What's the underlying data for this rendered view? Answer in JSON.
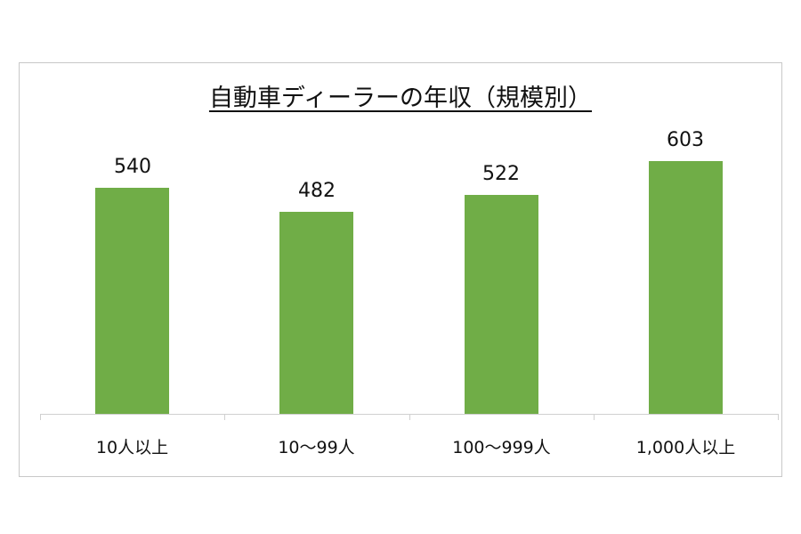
{
  "chart_data": {
    "type": "bar",
    "title": "自動車ディーラーの年収（規模別）",
    "categories": [
      "10人以上",
      "10～99人",
      "100～999人",
      "1,000人以上"
    ],
    "values": [
      540,
      482,
      522,
      603
    ],
    "value_labels": [
      "540",
      "482",
      "522",
      "603"
    ],
    "xlabel": "",
    "ylabel": "",
    "ylim": [
      0,
      700
    ],
    "grid": false,
    "legend": null,
    "bar_color": "#70ad47"
  }
}
